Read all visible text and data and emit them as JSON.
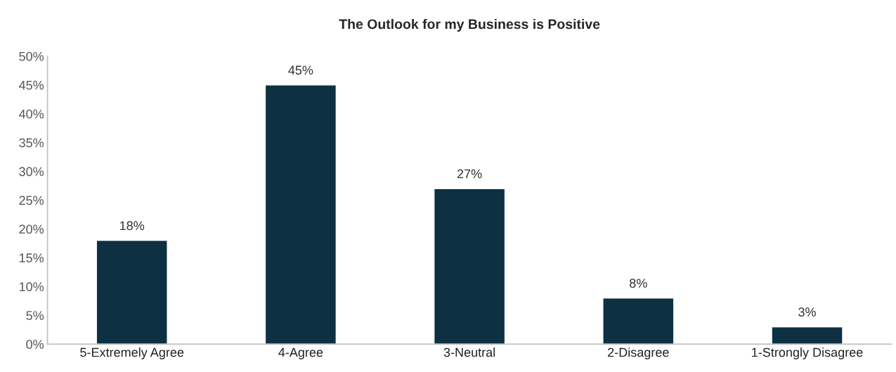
{
  "chart_data": {
    "type": "bar",
    "title": "The Outlook for my Business is Positive",
    "categories": [
      "5-Extremely Agree",
      "4-Agree",
      "3-Neutral",
      "2-Disagree",
      "1-Strongly Disagree"
    ],
    "values": [
      18,
      45,
      27,
      8,
      3
    ],
    "value_labels": [
      "18%",
      "45%",
      "27%",
      "8%",
      "3%"
    ],
    "color": "#0d3043",
    "ylim": [
      0,
      50
    ],
    "yticks": [
      {
        "value": 0,
        "label": "0%"
      },
      {
        "value": 5,
        "label": "5%"
      },
      {
        "value": 10,
        "label": "10%"
      },
      {
        "value": 15,
        "label": "15%"
      },
      {
        "value": 20,
        "label": "20%"
      },
      {
        "value": 25,
        "label": "25%"
      },
      {
        "value": 30,
        "label": "30%"
      },
      {
        "value": 35,
        "label": "35%"
      },
      {
        "value": 40,
        "label": "40%"
      },
      {
        "value": 45,
        "label": "45%"
      },
      {
        "value": 50,
        "label": "50%"
      }
    ],
    "grid": false,
    "legend": false
  }
}
